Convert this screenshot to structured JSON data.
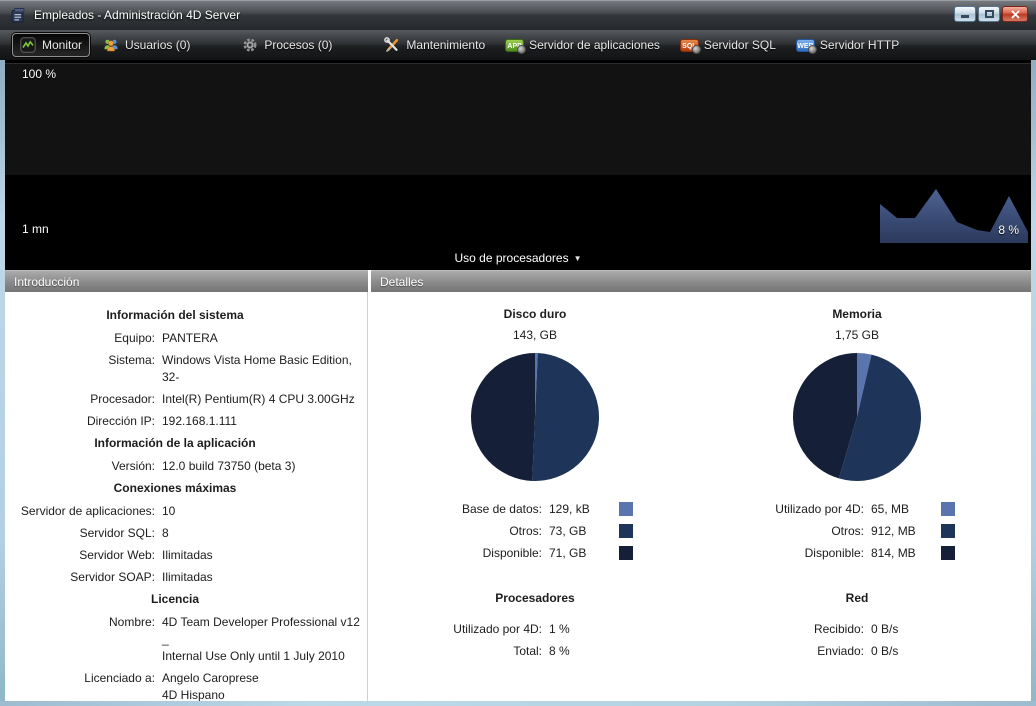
{
  "window": {
    "title": "Empleados - Administración 4D Server",
    "controls": {
      "minimize": "minimize",
      "maximize": "maximize",
      "close": "close"
    }
  },
  "toolbar": {
    "items": [
      {
        "label": "Monitor",
        "selected": true
      },
      {
        "label": "Usuarios (0)"
      },
      {
        "label": "Procesos (0)"
      },
      {
        "label": "Mantenimiento"
      },
      {
        "label": "Servidor de aplicaciones",
        "badge": "APP"
      },
      {
        "label": "Servidor SQL",
        "badge": "SQL"
      },
      {
        "label": "Servidor HTTP",
        "badge": "WEB"
      }
    ]
  },
  "monitor_graph": {
    "max_label": "100 %",
    "time_label": "1 mn",
    "current_label": "8 %",
    "selector_label": "Uso de procesadores"
  },
  "panels": {
    "intro_header": "Introducción",
    "details_header": "Detalles"
  },
  "intro": {
    "sections": [
      {
        "heading": "Información del sistema",
        "rows": [
          {
            "label": "Equipo:",
            "value": "PANTERA"
          },
          {
            "label": "Sistema:",
            "value": "Windows Vista Home Basic Edition, 32-"
          },
          {
            "label": "Procesador:",
            "value": "Intel(R) Pentium(R) 4 CPU 3.00GHz"
          },
          {
            "label": "Dirección IP:",
            "value": "192.168.1.111"
          }
        ]
      },
      {
        "heading": "Información de la aplicación",
        "rows": [
          {
            "label": "Versión:",
            "value": "12.0 build 73750 (beta 3)"
          }
        ]
      },
      {
        "heading": "Conexiones máximas",
        "rows": [
          {
            "label": "Servidor de aplicaciones:",
            "value": "10"
          },
          {
            "label": "Servidor SQL:",
            "value": "8"
          },
          {
            "label": "Servidor Web:",
            "value": "Ilimitadas"
          },
          {
            "label": "Servidor SOAP:",
            "value": "Ilimitadas"
          }
        ]
      },
      {
        "heading": "Licencia",
        "rows": [
          {
            "label": "Nombre:",
            "value": "4D Team Developer Professional v12 _\nInternal Use Only until 1 July 2010"
          },
          {
            "label": "Licenciado a:",
            "value": "Angelo Caroprese\n4D Hispano"
          }
        ]
      }
    ]
  },
  "details": {
    "cpu": {
      "heading": "Procesadores",
      "rows": [
        {
          "label": "Utilizado por 4D:",
          "value": "1 %"
        },
        {
          "label": "Total:",
          "value": "8 %"
        }
      ]
    },
    "network": {
      "heading": "Red",
      "rows": [
        {
          "label": "Recibido:",
          "value": "0 B/s"
        },
        {
          "label": "Enviado:",
          "value": "0 B/s"
        }
      ]
    }
  },
  "chart_data": [
    {
      "type": "area",
      "title": "Uso de procesadores",
      "ylabel_top": "100 %",
      "xlabel": "1 mn",
      "current_percent": 8,
      "current_label": "8 %",
      "box": [
        148,
        55
      ],
      "polyline": [
        [
          0,
          0
        ],
        [
          0,
          39
        ],
        [
          17,
          25
        ],
        [
          35,
          25
        ],
        [
          56,
          54
        ],
        [
          77,
          21
        ],
        [
          97,
          13
        ],
        [
          110,
          11
        ],
        [
          129,
          47
        ],
        [
          148,
          11
        ],
        [
          148,
          0
        ]
      ],
      "colors": {
        "top": "#4d6292",
        "bottom": "#2b3a5d"
      }
    },
    {
      "type": "pie",
      "title": "Disco duro",
      "subtitle": "143, GB",
      "unit": "GB",
      "slices": [
        {
          "label": "Base de datos:",
          "value": 0.000129,
          "value_text": "129, kB",
          "color": "#5a74ad"
        },
        {
          "label": "Otros:",
          "value": 73,
          "value_text": "73, GB",
          "color": "#1f3459"
        },
        {
          "label": "Disponible:",
          "value": 71,
          "value_text": "71, GB",
          "color": "#151f38"
        }
      ]
    },
    {
      "type": "pie",
      "title": "Memoria",
      "subtitle": "1,75 GB",
      "unit": "MB",
      "slices": [
        {
          "label": "Utilizado por 4D:",
          "value": 65,
          "value_text": "65, MB",
          "color": "#5a74ad"
        },
        {
          "label": "Otros:",
          "value": 912,
          "value_text": "912, MB",
          "color": "#1f3459"
        },
        {
          "label": "Disponible:",
          "value": 814,
          "value_text": "814, MB",
          "color": "#151f38"
        }
      ]
    }
  ]
}
